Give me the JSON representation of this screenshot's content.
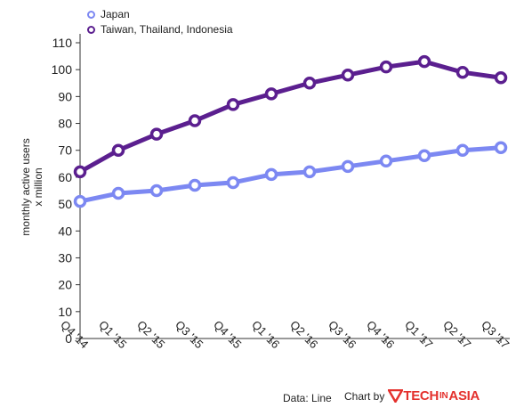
{
  "chart_data": {
    "type": "line",
    "categories": [
      "Q4 '14",
      "Q1 '15",
      "Q2 '15",
      "Q3 '15",
      "Q4 '15",
      "Q1 '16",
      "Q2 '16",
      "Q3 '16",
      "Q4 '16",
      "Q1 '17",
      "Q2 '17",
      "Q3 '17"
    ],
    "series": [
      {
        "name": "Japan",
        "color": "#7c88f2",
        "values": [
          51,
          54,
          55,
          57,
          58,
          61,
          62,
          64,
          66,
          68,
          70,
          71
        ]
      },
      {
        "name": "Taiwan, Thailand, Indonesia",
        "color": "#5b1f8f",
        "values": [
          62,
          70,
          76,
          81,
          87,
          91,
          95,
          98,
          101,
          103,
          99,
          97
        ]
      }
    ],
    "ylabel_line1": "monthly active users",
    "ylabel_line2": "x million",
    "ylim": [
      0,
      110
    ],
    "yticks": [
      0,
      10,
      20,
      30,
      40,
      50,
      60,
      70,
      80,
      90,
      100,
      110
    ],
    "grid": false,
    "legend_position": "top-left"
  },
  "footer": {
    "source": "Data: Line",
    "credit_prefix": "Chart by",
    "brand_tech": "TECH",
    "brand_in": "IN",
    "brand_asia": "ASIA"
  }
}
